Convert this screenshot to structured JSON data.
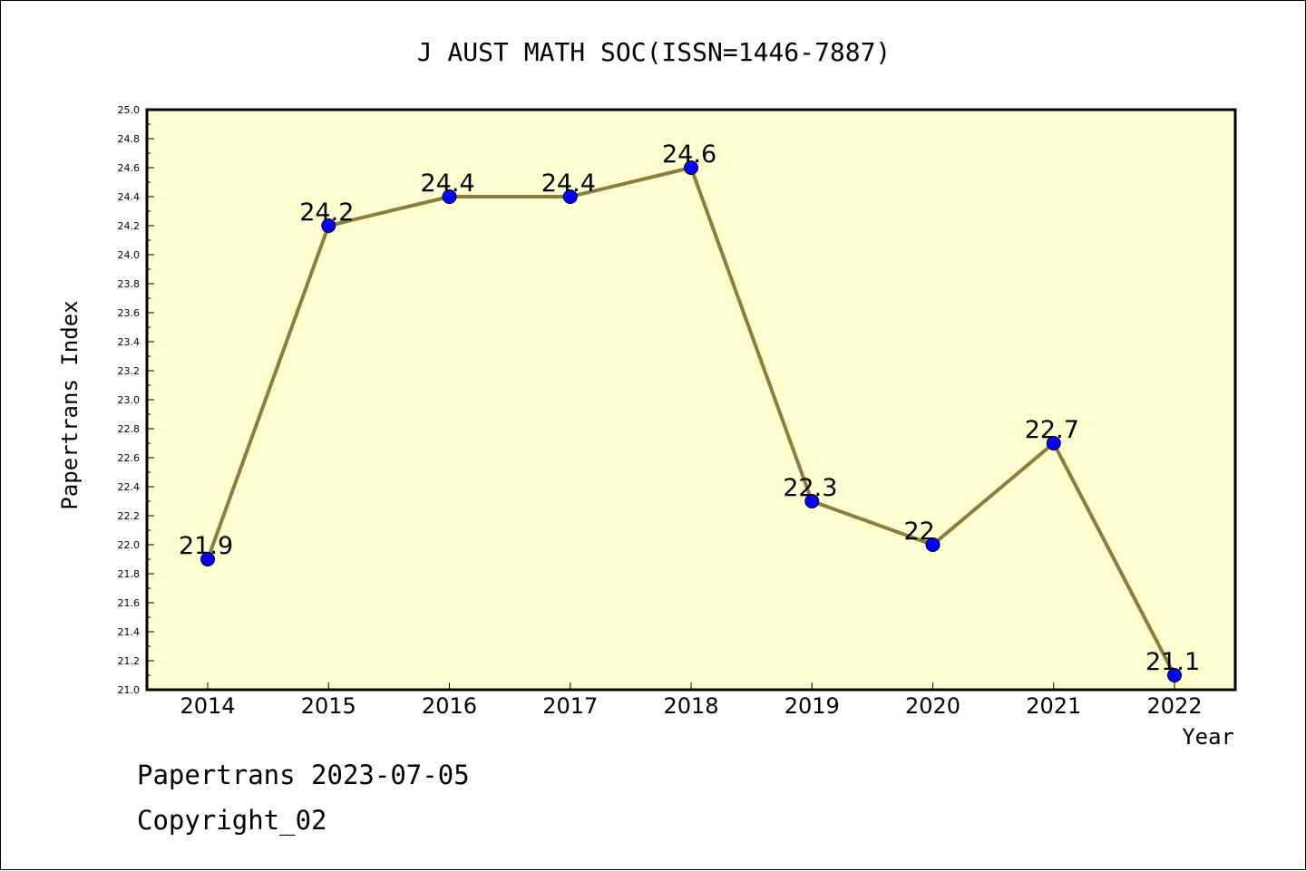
{
  "chart_data": {
    "type": "line",
    "title": "J AUST MATH SOC(ISSN=1446-7887)",
    "xlabel": "Year",
    "ylabel": "Papertrans Index",
    "categories": [
      "2014",
      "2015",
      "2016",
      "2017",
      "2018",
      "2019",
      "2020",
      "2021",
      "2022"
    ],
    "values": [
      21.9,
      24.2,
      24.4,
      24.4,
      24.6,
      22.3,
      22.0,
      22.7,
      21.1
    ],
    "data_labels": [
      "21.9",
      "24.2",
      "24.4",
      "24.4",
      "24.6",
      "22.3",
      "22",
      "22.7",
      "21.1"
    ],
    "ylim": [
      21.0,
      25.0
    ],
    "yticks": [
      "21.0",
      "21.2",
      "21.4",
      "21.6",
      "21.8",
      "22.0",
      "22.2",
      "22.4",
      "22.6",
      "22.8",
      "23.0",
      "23.2",
      "23.4",
      "23.6",
      "23.8",
      "24.0",
      "24.2",
      "24.4",
      "24.6",
      "24.8",
      "25.0"
    ],
    "grid": false,
    "colors": {
      "plot_background": "#ffffd2",
      "line": "#8b7d3a",
      "marker": "#0000ff",
      "axes": "#000000"
    }
  },
  "footer": {
    "line1": "Papertrans 2023-07-05",
    "line2": "Copyright_02"
  }
}
